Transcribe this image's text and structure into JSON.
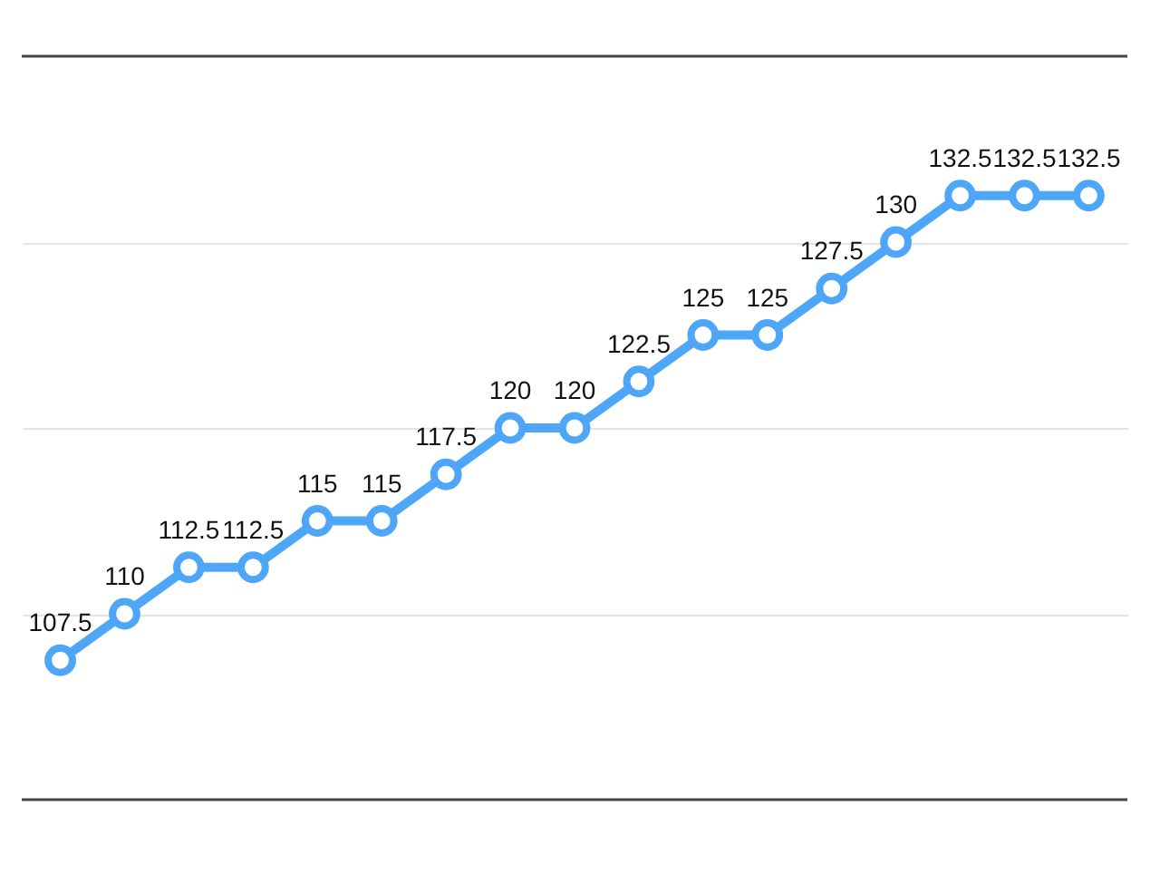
{
  "chart_data": {
    "type": "line",
    "categories": [
      null,
      null,
      null,
      null,
      null,
      null,
      null,
      null,
      null,
      null,
      null,
      null,
      null,
      null,
      null,
      null,
      null
    ],
    "series": [
      {
        "color": "#4da6f7",
        "values": [
          107.5,
          110,
          112.5,
          112.5,
          115,
          115,
          117.5,
          120,
          120,
          122.5,
          125,
          125,
          127.5,
          130,
          132.5,
          132.5,
          132.5
        ]
      }
    ],
    "ylim": [
      100,
      140
    ],
    "yticks": [
      {
        "value": 110,
        "label": null
      },
      {
        "value": 120,
        "label": null
      },
      {
        "value": 130,
        "label": null
      }
    ],
    "grid": "y",
    "marker": "circle",
    "line_style": "solid",
    "data_labels": true
  }
}
